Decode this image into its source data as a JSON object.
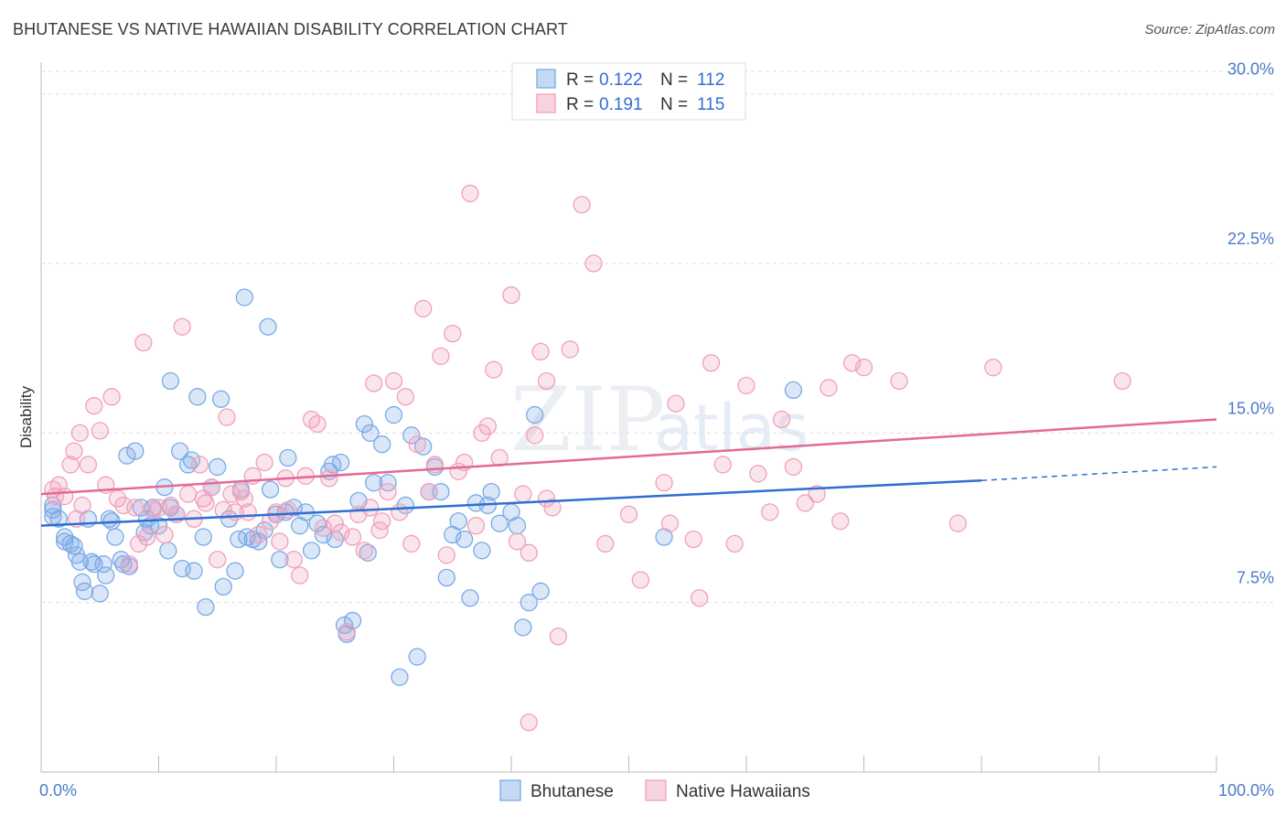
{
  "title": "BHUTANESE VS NATIVE HAWAIIAN DISABILITY CORRELATION CHART",
  "source": "Source: ZipAtlas.com",
  "chart_data": {
    "type": "scatter",
    "xlabel": "",
    "ylabel": "Disability",
    "xlim": [
      0,
      100
    ],
    "ylim": [
      0,
      31
    ],
    "x_tick_labels": [
      "0.0%",
      "100.0%"
    ],
    "y_ticks": [
      7.5,
      15.0,
      22.5,
      30.0
    ],
    "y_tick_labels": [
      "7.5%",
      "15.0%",
      "22.5%",
      "30.0%"
    ],
    "grid": true,
    "legend_position": "top-center",
    "series": [
      {
        "name": "Bhutanese",
        "color": "#7aaae6",
        "line_color": "#2f6fd0",
        "r": "0.122",
        "n": "112",
        "trend": {
          "x0": 0,
          "y0": 10.9,
          "x1": 80,
          "y1": 12.9,
          "dash_to_x": 100,
          "dash_to_y": 13.5
        },
        "points": [
          [
            1,
            11.8
          ],
          [
            1,
            11.3
          ],
          [
            1.5,
            11.2
          ],
          [
            2,
            10.4
          ],
          [
            2.5,
            10.1
          ],
          [
            2,
            10.2
          ],
          [
            2.8,
            10.0
          ],
          [
            3,
            9.6
          ],
          [
            3.3,
            9.3
          ],
          [
            3.5,
            8.4
          ],
          [
            3.7,
            8.0
          ],
          [
            4,
            11.2
          ],
          [
            4.3,
            9.3
          ],
          [
            4.5,
            9.2
          ],
          [
            5,
            7.9
          ],
          [
            5.3,
            9.2
          ],
          [
            5.5,
            8.7
          ],
          [
            5.8,
            11.2
          ],
          [
            6,
            11.1
          ],
          [
            6.3,
            10.4
          ],
          [
            6.8,
            9.4
          ],
          [
            7,
            9.2
          ],
          [
            7.3,
            14.0
          ],
          [
            7.5,
            9.1
          ],
          [
            8,
            14.2
          ],
          [
            8.5,
            11.7
          ],
          [
            8.8,
            10.6
          ],
          [
            9,
            11.2
          ],
          [
            9.3,
            10.9
          ],
          [
            9.5,
            11.7
          ],
          [
            10,
            10.9
          ],
          [
            10.5,
            12.6
          ],
          [
            10.8,
            9.8
          ],
          [
            11,
            17.3
          ],
          [
            11.5,
            11.4
          ],
          [
            11.8,
            14.2
          ],
          [
            12,
            9.0
          ],
          [
            12.5,
            13.6
          ],
          [
            12.8,
            13.8
          ],
          [
            13,
            8.9
          ],
          [
            13.3,
            16.6
          ],
          [
            13.8,
            10.4
          ],
          [
            14,
            7.3
          ],
          [
            14.5,
            12.6
          ],
          [
            15,
            13.5
          ],
          [
            15.3,
            16.5
          ],
          [
            15.5,
            8.2
          ],
          [
            16,
            11.2
          ],
          [
            16.5,
            8.9
          ],
          [
            16.8,
            10.3
          ],
          [
            17,
            12.5
          ],
          [
            17.3,
            21.0
          ],
          [
            17.5,
            10.4
          ],
          [
            18,
            10.3
          ],
          [
            18.5,
            10.2
          ],
          [
            19,
            10.7
          ],
          [
            19.3,
            19.7
          ],
          [
            19.5,
            12.5
          ],
          [
            20,
            11.4
          ],
          [
            20.3,
            9.4
          ],
          [
            20.8,
            11.5
          ],
          [
            21,
            13.9
          ],
          [
            21.5,
            11.7
          ],
          [
            22,
            10.9
          ],
          [
            22.5,
            11.5
          ],
          [
            23,
            9.8
          ],
          [
            23.5,
            11.0
          ],
          [
            24,
            10.5
          ],
          [
            24.5,
            13.3
          ],
          [
            24.8,
            13.6
          ],
          [
            25,
            10.3
          ],
          [
            25.5,
            13.7
          ],
          [
            25.8,
            6.5
          ],
          [
            26,
            6.1
          ],
          [
            26.5,
            6.7
          ],
          [
            27,
            12.0
          ],
          [
            27.5,
            15.4
          ],
          [
            27.8,
            9.7
          ],
          [
            28,
            15.0
          ],
          [
            28.3,
            12.8
          ],
          [
            29,
            14.5
          ],
          [
            29.5,
            12.8
          ],
          [
            30,
            15.8
          ],
          [
            30.5,
            4.2
          ],
          [
            31,
            11.8
          ],
          [
            31.5,
            14.9
          ],
          [
            32,
            5.1
          ],
          [
            32.5,
            14.4
          ],
          [
            33,
            12.4
          ],
          [
            33.5,
            13.5
          ],
          [
            34,
            12.4
          ],
          [
            34.5,
            8.6
          ],
          [
            35,
            10.5
          ],
          [
            35.5,
            11.1
          ],
          [
            36,
            10.3
          ],
          [
            36.5,
            7.7
          ],
          [
            37,
            11.9
          ],
          [
            37.5,
            9.8
          ],
          [
            38,
            11.8
          ],
          [
            38.3,
            12.4
          ],
          [
            39,
            11.0
          ],
          [
            40,
            11.5
          ],
          [
            40.5,
            10.9
          ],
          [
            41,
            6.4
          ],
          [
            41.5,
            7.5
          ],
          [
            42,
            15.8
          ],
          [
            42.5,
            8.0
          ],
          [
            53,
            10.4
          ],
          [
            64,
            16.9
          ],
          [
            1,
            11.6
          ],
          [
            11,
            11.7
          ]
        ]
      },
      {
        "name": "Native Hawaiians",
        "color": "#f0a0ba",
        "line_color": "#e36a95",
        "r": "0.191",
        "n": "115",
        "trend": {
          "x0": 0,
          "y0": 12.3,
          "x1": 100,
          "y1": 15.6
        },
        "points": [
          [
            1,
            12.5
          ],
          [
            1.2,
            12.2
          ],
          [
            1.5,
            12.7
          ],
          [
            2,
            12.2
          ],
          [
            2.5,
            13.6
          ],
          [
            2.8,
            14.2
          ],
          [
            3,
            11.2
          ],
          [
            3.3,
            15.0
          ],
          [
            3.5,
            11.8
          ],
          [
            4,
            13.6
          ],
          [
            4.5,
            16.2
          ],
          [
            5,
            15.1
          ],
          [
            5.5,
            12.7
          ],
          [
            6,
            16.6
          ],
          [
            6.5,
            12.1
          ],
          [
            7,
            11.8
          ],
          [
            7.5,
            9.2
          ],
          [
            8,
            11.7
          ],
          [
            8.3,
            10.1
          ],
          [
            8.7,
            19.0
          ],
          [
            9,
            10.4
          ],
          [
            9.5,
            11.6
          ],
          [
            10,
            11.7
          ],
          [
            10.5,
            10.5
          ],
          [
            11,
            11.8
          ],
          [
            11.5,
            11.4
          ],
          [
            12,
            19.7
          ],
          [
            12.5,
            12.3
          ],
          [
            13,
            11.2
          ],
          [
            13.5,
            13.6
          ],
          [
            13.8,
            12.1
          ],
          [
            14,
            11.9
          ],
          [
            14.5,
            12.6
          ],
          [
            15,
            9.4
          ],
          [
            15.5,
            11.6
          ],
          [
            15.8,
            15.7
          ],
          [
            16.2,
            12.3
          ],
          [
            16.5,
            11.5
          ],
          [
            17,
            12.4
          ],
          [
            17.3,
            12.1
          ],
          [
            17.6,
            11.5
          ],
          [
            18,
            13.1
          ],
          [
            18.5,
            10.5
          ],
          [
            19,
            13.7
          ],
          [
            19.5,
            11.1
          ],
          [
            20,
            11.5
          ],
          [
            20.3,
            10.2
          ],
          [
            20.8,
            13.0
          ],
          [
            21,
            11.6
          ],
          [
            21.5,
            9.4
          ],
          [
            22,
            8.7
          ],
          [
            22.5,
            13.1
          ],
          [
            23,
            15.6
          ],
          [
            23.5,
            15.4
          ],
          [
            24,
            10.8
          ],
          [
            24.5,
            13.0
          ],
          [
            25,
            11.0
          ],
          [
            25.5,
            10.6
          ],
          [
            26,
            6.2
          ],
          [
            26.5,
            10.4
          ],
          [
            27,
            11.4
          ],
          [
            27.5,
            9.8
          ],
          [
            28,
            11.7
          ],
          [
            28.3,
            17.2
          ],
          [
            28.8,
            10.7
          ],
          [
            29,
            11.1
          ],
          [
            29.5,
            12.4
          ],
          [
            30,
            17.3
          ],
          [
            30.5,
            11.5
          ],
          [
            31,
            16.6
          ],
          [
            31.5,
            10.1
          ],
          [
            32,
            14.5
          ],
          [
            32.5,
            20.5
          ],
          [
            33,
            12.4
          ],
          [
            33.5,
            13.6
          ],
          [
            34,
            18.4
          ],
          [
            34.5,
            9.6
          ],
          [
            35,
            19.4
          ],
          [
            35.5,
            13.3
          ],
          [
            36,
            13.7
          ],
          [
            36.5,
            25.6
          ],
          [
            37,
            10.9
          ],
          [
            37.5,
            15.0
          ],
          [
            38,
            15.3
          ],
          [
            38.5,
            17.8
          ],
          [
            39,
            13.9
          ],
          [
            40,
            21.1
          ],
          [
            40.5,
            10.2
          ],
          [
            41,
            12.3
          ],
          [
            41.5,
            9.7
          ],
          [
            42,
            14.9
          ],
          [
            42.5,
            18.6
          ],
          [
            43,
            17.3
          ],
          [
            43.5,
            11.7
          ],
          [
            44,
            6.0
          ],
          [
            45,
            18.7
          ],
          [
            46,
            25.1
          ],
          [
            47,
            22.5
          ],
          [
            48,
            10.1
          ],
          [
            50,
            11.4
          ],
          [
            51,
            8.5
          ],
          [
            53,
            12.8
          ],
          [
            54,
            16.3
          ],
          [
            55.5,
            10.3
          ],
          [
            56,
            7.7
          ],
          [
            57,
            18.1
          ],
          [
            58,
            13.6
          ],
          [
            59,
            10.1
          ],
          [
            60,
            17.1
          ],
          [
            61,
            13.2
          ],
          [
            62,
            11.5
          ],
          [
            63,
            15.6
          ],
          [
            64,
            13.5
          ],
          [
            65,
            11.9
          ],
          [
            66,
            12.3
          ],
          [
            67,
            17.0
          ],
          [
            68,
            11.1
          ],
          [
            69,
            18.1
          ],
          [
            70,
            17.9
          ],
          [
            73,
            17.3
          ],
          [
            78,
            11.0
          ],
          [
            81,
            17.9
          ],
          [
            92,
            17.3
          ],
          [
            41.5,
            2.2
          ],
          [
            53.5,
            11.0
          ],
          [
            43,
            12.1
          ]
        ]
      }
    ]
  },
  "legend": {
    "bottom_items": [
      "Bhutanese",
      "Native Hawaiians"
    ],
    "r_label": "R =",
    "n_label": "N ="
  },
  "watermark": "ZIPatlas"
}
